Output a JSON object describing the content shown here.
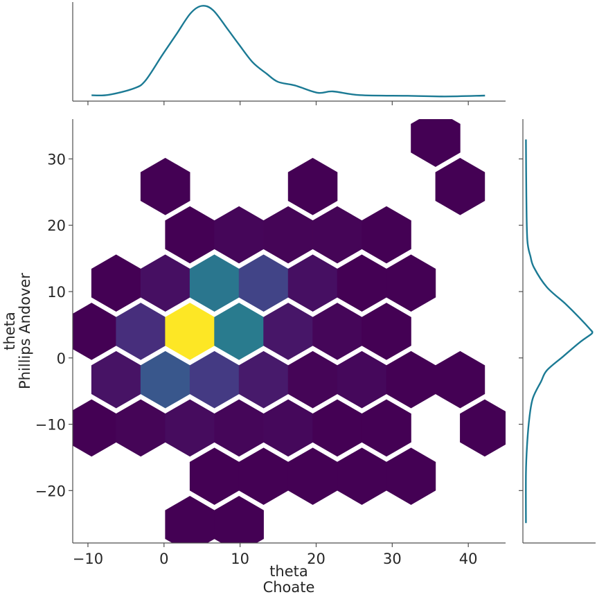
{
  "chart_data": [
    {
      "type": "heatmap",
      "subtype": "hexbin",
      "title": "",
      "xlabel": [
        "theta",
        "Choate"
      ],
      "ylabel": [
        "theta",
        "Phillips Andover"
      ],
      "xlim": [
        -12.0,
        44.9
      ],
      "ylim": [
        -27.9,
        36.0
      ],
      "xticks": [
        -10,
        0,
        10,
        20,
        30,
        40
      ],
      "yticks": [
        -20,
        -10,
        0,
        10,
        20,
        30
      ],
      "xtick_labels": [
        "−10",
        "0",
        "10",
        "20",
        "30",
        "40"
      ],
      "ytick_labels": [
        "−20",
        "−10",
        "0",
        "10",
        "20",
        "30"
      ],
      "colormap": "viridis",
      "grid": false,
      "hex_spacing_x": 6.46,
      "cells_columns": [
        "x",
        "y",
        "relative_count"
      ],
      "cells": [
        [
          35.7,
          33.12,
          0
        ],
        [
          0.17,
          25.84,
          0
        ],
        [
          19.55,
          25.84,
          0
        ],
        [
          38.93,
          25.84,
          0
        ],
        [
          3.4,
          18.56,
          0
        ],
        [
          9.86,
          18.56,
          0.015
        ],
        [
          16.32,
          18.56,
          0.01
        ],
        [
          22.78,
          18.56,
          0.01
        ],
        [
          29.24,
          18.56,
          0
        ],
        [
          -6.29,
          11.28,
          0
        ],
        [
          0.17,
          11.28,
          0.04
        ],
        [
          6.63,
          11.28,
          0.42
        ],
        [
          13.09,
          11.28,
          0.2
        ],
        [
          19.55,
          11.28,
          0.04
        ],
        [
          26.01,
          11.28,
          0
        ],
        [
          32.47,
          11.28,
          0
        ],
        [
          -9.52,
          4.0,
          0
        ],
        [
          -3.06,
          4.0,
          0.13
        ],
        [
          3.4,
          4.0,
          1.0
        ],
        [
          9.86,
          4.0,
          0.44
        ],
        [
          16.32,
          4.0,
          0.06
        ],
        [
          22.78,
          4.0,
          0.015
        ],
        [
          29.24,
          4.0,
          0
        ],
        [
          -6.29,
          -3.28,
          0.05
        ],
        [
          0.17,
          -3.28,
          0.27
        ],
        [
          6.63,
          -3.28,
          0.17
        ],
        [
          13.09,
          -3.28,
          0.07
        ],
        [
          19.55,
          -3.28,
          0.01
        ],
        [
          26.01,
          -3.28,
          0.02
        ],
        [
          32.47,
          -3.28,
          0
        ],
        [
          38.93,
          -3.28,
          0
        ],
        [
          -9.52,
          -10.56,
          0
        ],
        [
          -3.06,
          -10.56,
          0.01
        ],
        [
          3.4,
          -10.56,
          0.03
        ],
        [
          9.86,
          -10.56,
          0.015
        ],
        [
          16.32,
          -10.56,
          0.02
        ],
        [
          22.78,
          -10.56,
          0
        ],
        [
          29.24,
          -10.56,
          0
        ],
        [
          42.16,
          -10.56,
          0
        ],
        [
          6.63,
          -17.84,
          0
        ],
        [
          13.09,
          -17.84,
          0
        ],
        [
          19.55,
          -17.84,
          0
        ],
        [
          26.01,
          -17.84,
          0
        ],
        [
          32.47,
          -17.84,
          0
        ],
        [
          3.4,
          -25.12,
          0
        ],
        [
          9.86,
          -25.12,
          0
        ]
      ]
    },
    {
      "type": "line",
      "subtype": "kde-marginal-x",
      "color": "#1b7a94",
      "xlim": [
        -12.0,
        44.9
      ],
      "ylim": [
        0,
        1.04
      ],
      "xticks": [
        -10,
        0,
        10,
        20,
        30,
        40
      ],
      "x": [
        -9.52,
        -7.29,
        -3.95,
        -2.46,
        -0.24,
        1.62,
        3.47,
        4.96,
        6.44,
        8.3,
        9.78,
        11.64,
        13.5,
        14.98,
        17.2,
        20.18,
        22.2,
        25.75,
        32.06,
        36.9,
        42.2
      ],
      "y": [
        0.061,
        0.066,
        0.134,
        0.214,
        0.482,
        0.701,
        0.92,
        1.0,
        0.956,
        0.762,
        0.603,
        0.409,
        0.287,
        0.202,
        0.165,
        0.088,
        0.102,
        0.063,
        0.056,
        0.049,
        0.058
      ]
    },
    {
      "type": "line",
      "subtype": "kde-marginal-y",
      "color": "#1b7a94",
      "ylim": [
        -27.9,
        36.0
      ],
      "xlim": [
        0,
        1.05
      ],
      "yticks": [
        -20,
        -10,
        0,
        10,
        20,
        30
      ],
      "y": [
        32.93,
        24.48,
        17.78,
        15.27,
        13.6,
        10.67,
        8.16,
        6.07,
        4.18,
        3.9,
        3.56,
        2.3,
        0.21,
        -1.88,
        -3.56,
        -6.07,
        -9.0,
        -13.2,
        -17.36,
        -24.9
      ],
      "x": [
        0.044,
        0.05,
        0.064,
        0.11,
        0.161,
        0.346,
        0.614,
        0.815,
        0.983,
        1.0,
        0.983,
        0.815,
        0.58,
        0.346,
        0.262,
        0.144,
        0.094,
        0.06,
        0.044,
        0.044
      ]
    }
  ]
}
